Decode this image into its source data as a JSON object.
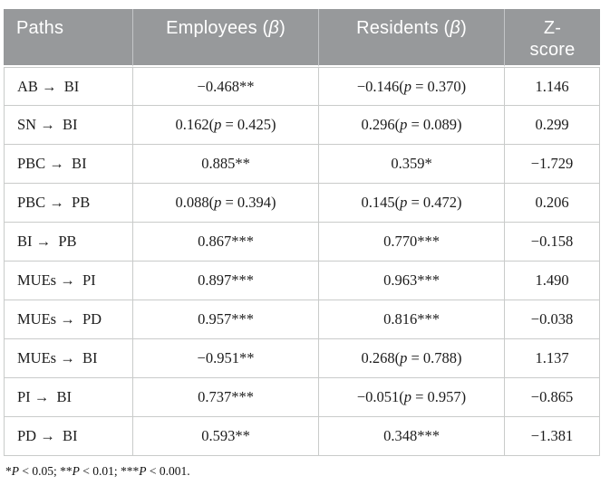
{
  "colors": {
    "header_bg": "#97999b",
    "header_text": "#ffffff",
    "grid_border": "#c9cbca",
    "header_divider": "#c3c5c7",
    "body_text": "#1c1c1c",
    "page_bg": "#ffffff"
  },
  "table": {
    "header": {
      "paths": "Paths",
      "employees_prefix": "Employees (",
      "employees_symbol": "β",
      "employees_suffix": ")",
      "residents_prefix": "Residents (",
      "residents_symbol": "β",
      "residents_suffix": ")",
      "zscore_top": "Z-",
      "zscore_bottom": "score"
    },
    "rows": [
      {
        "path": "AB → BI",
        "employees": "−0.468**",
        "residents": "−0.146(p = 0.370)",
        "z_score": "1.146"
      },
      {
        "path": "SN → BI",
        "employees": "0.162(p = 0.425)",
        "residents": "0.296(p = 0.089)",
        "z_score": "0.299"
      },
      {
        "path": "PBC → BI",
        "employees": "0.885**",
        "residents": "0.359*",
        "z_score": "−1.729"
      },
      {
        "path": "PBC → PB",
        "employees": "0.088(p = 0.394)",
        "residents": "0.145(p = 0.472)",
        "z_score": "0.206"
      },
      {
        "path": "BI → PB",
        "employees": "0.867***",
        "residents": "0.770***",
        "z_score": "−0.158"
      },
      {
        "path": "MUEs → PI",
        "employees": "0.897***",
        "residents": "0.963***",
        "z_score": "1.490"
      },
      {
        "path": "MUEs → PD",
        "employees": "0.957***",
        "residents": "0.816***",
        "z_score": "−0.038"
      },
      {
        "path": "MUEs → BI",
        "employees": "−0.951**",
        "residents": "0.268(p = 0.788)",
        "z_score": "1.137"
      },
      {
        "path": "PI → BI",
        "employees": "0.737***",
        "residents": "−0.051(p = 0.957)",
        "z_score": "−0.865"
      },
      {
        "path": "PD → BI",
        "employees": "0.593**",
        "residents": "0.348***",
        "z_score": "−1.381"
      }
    ],
    "footnote": "*P < 0.05; **P < 0.01; ***P < 0.001."
  }
}
